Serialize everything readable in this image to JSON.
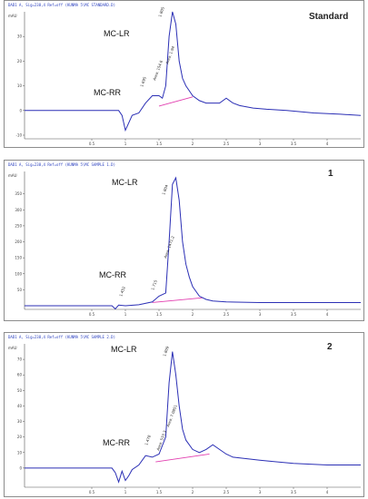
{
  "chart_data": [
    {
      "type": "line",
      "title": "Standard",
      "ylabel": "mAU",
      "header": "DAD1 A, Sig=238,4 Ref=off (KUNMA 5\\MC STANDARD.D)",
      "xlim": [
        -0.5,
        4.5
      ],
      "xticks": [
        "0.5",
        "1",
        "1.5",
        "2",
        "2.5",
        "3",
        "3.5",
        "4"
      ],
      "ylim": [
        -10,
        40
      ],
      "yticks": [
        "-10",
        "0",
        "10",
        "20",
        "30"
      ],
      "peak_labels": {
        "lr": "MC-LR",
        "rr": "MC-RR"
      },
      "rt_annotations": [
        "1.805",
        "1.695",
        "Area: 1.94",
        "Area: 154.6"
      ],
      "series": [
        {
          "name": "",
          "x": [
            -0.5,
            0.8,
            0.9,
            0.95,
            1.0,
            1.05,
            1.1,
            1.2,
            1.3,
            1.4,
            1.5,
            1.55,
            1.6,
            1.65,
            1.7,
            1.75,
            1.8,
            1.85,
            1.9,
            1.95,
            2.0,
            2.1,
            2.2,
            2.4,
            2.5,
            2.6,
            2.7,
            2.9,
            3.1,
            3.4,
            3.8,
            4.2,
            4.5
          ],
          "y": [
            0,
            0,
            0,
            -2,
            -8,
            -5,
            -2,
            -1,
            3,
            6,
            6,
            5,
            10,
            30,
            40,
            35,
            20,
            13,
            10,
            8,
            6,
            4,
            3,
            3,
            5,
            3,
            2,
            1,
            0.5,
            0,
            -1,
            -1.5,
            -2
          ]
        }
      ],
      "baseline": [
        [
          1.5,
          1.8
        ],
        [
          2.0,
          5.5
        ]
      ]
    },
    {
      "type": "line",
      "title": "1",
      "ylabel": "mAU",
      "header": "DAD1 A, Sig=238,4 Ref=off (KUNMA 5\\MC SAMPLE 1.D)",
      "xlim": [
        -0.5,
        4.5
      ],
      "xticks": [
        "0.5",
        "1",
        "1.5",
        "2",
        "2.5",
        "3",
        "3.5",
        "4"
      ],
      "ylim": [
        0,
        420
      ],
      "yticks": [
        "50",
        "100",
        "150",
        "200",
        "250",
        "300",
        "350"
      ],
      "peak_labels": {
        "lr": "MC-LR",
        "rr": "MC-RR"
      },
      "rt_annotations": [
        "1.804",
        "1.452",
        "1.715",
        "Area: 1471.2"
      ],
      "series": [
        {
          "name": "",
          "x": [
            -0.5,
            0.7,
            0.8,
            0.85,
            0.9,
            1.0,
            1.2,
            1.4,
            1.5,
            1.6,
            1.65,
            1.7,
            1.75,
            1.8,
            1.85,
            1.9,
            1.95,
            2.0,
            2.1,
            2.2,
            2.3,
            2.5,
            3.0,
            3.5,
            4.0,
            4.5
          ],
          "y": [
            0,
            0,
            0,
            -10,
            2,
            0,
            3,
            12,
            30,
            40,
            200,
            380,
            400,
            330,
            200,
            130,
            90,
            60,
            30,
            20,
            15,
            12,
            10,
            10,
            10,
            10
          ]
        }
      ],
      "baseline": [
        [
          1.4,
          10
        ],
        [
          2.15,
          25
        ]
      ]
    },
    {
      "type": "line",
      "title": "2",
      "ylabel": "mAU",
      "header": "DAD1 A, Sig=238,4 Ref=off (KUNMA 5\\MC SAMPLE 2.D)",
      "xlim": [
        -0.5,
        4.5
      ],
      "xticks": [
        "0.5",
        "1",
        "1.5",
        "2",
        "2.5",
        "3",
        "3.5",
        "4"
      ],
      "ylim": [
        -10,
        80
      ],
      "yticks": [
        "0",
        "10",
        "20",
        "30",
        "40",
        "50",
        "60",
        "70"
      ],
      "peak_labels": {
        "lr": "MC-LR",
        "rr": "MC-RR"
      },
      "rt_annotations": [
        "1.809",
        "1.478",
        "Area: 7.0851",
        "Area: 533.3"
      ],
      "series": [
        {
          "name": "",
          "x": [
            -0.5,
            0.8,
            0.85,
            0.9,
            0.95,
            1.0,
            1.05,
            1.1,
            1.2,
            1.3,
            1.4,
            1.5,
            1.6,
            1.65,
            1.7,
            1.75,
            1.8,
            1.85,
            1.9,
            2.0,
            2.1,
            2.2,
            2.3,
            2.4,
            2.5,
            2.6,
            3.0,
            3.5,
            4.0,
            4.5
          ],
          "y": [
            0,
            0,
            -3,
            -9,
            -2,
            -8,
            -5,
            -1,
            2,
            8,
            7,
            9,
            20,
            55,
            75,
            60,
            40,
            25,
            18,
            12,
            10,
            12,
            15,
            12,
            9,
            7,
            5,
            3,
            2,
            2
          ]
        }
      ],
      "baseline": [
        [
          1.45,
          4
        ],
        [
          2.25,
          9
        ]
      ]
    }
  ]
}
